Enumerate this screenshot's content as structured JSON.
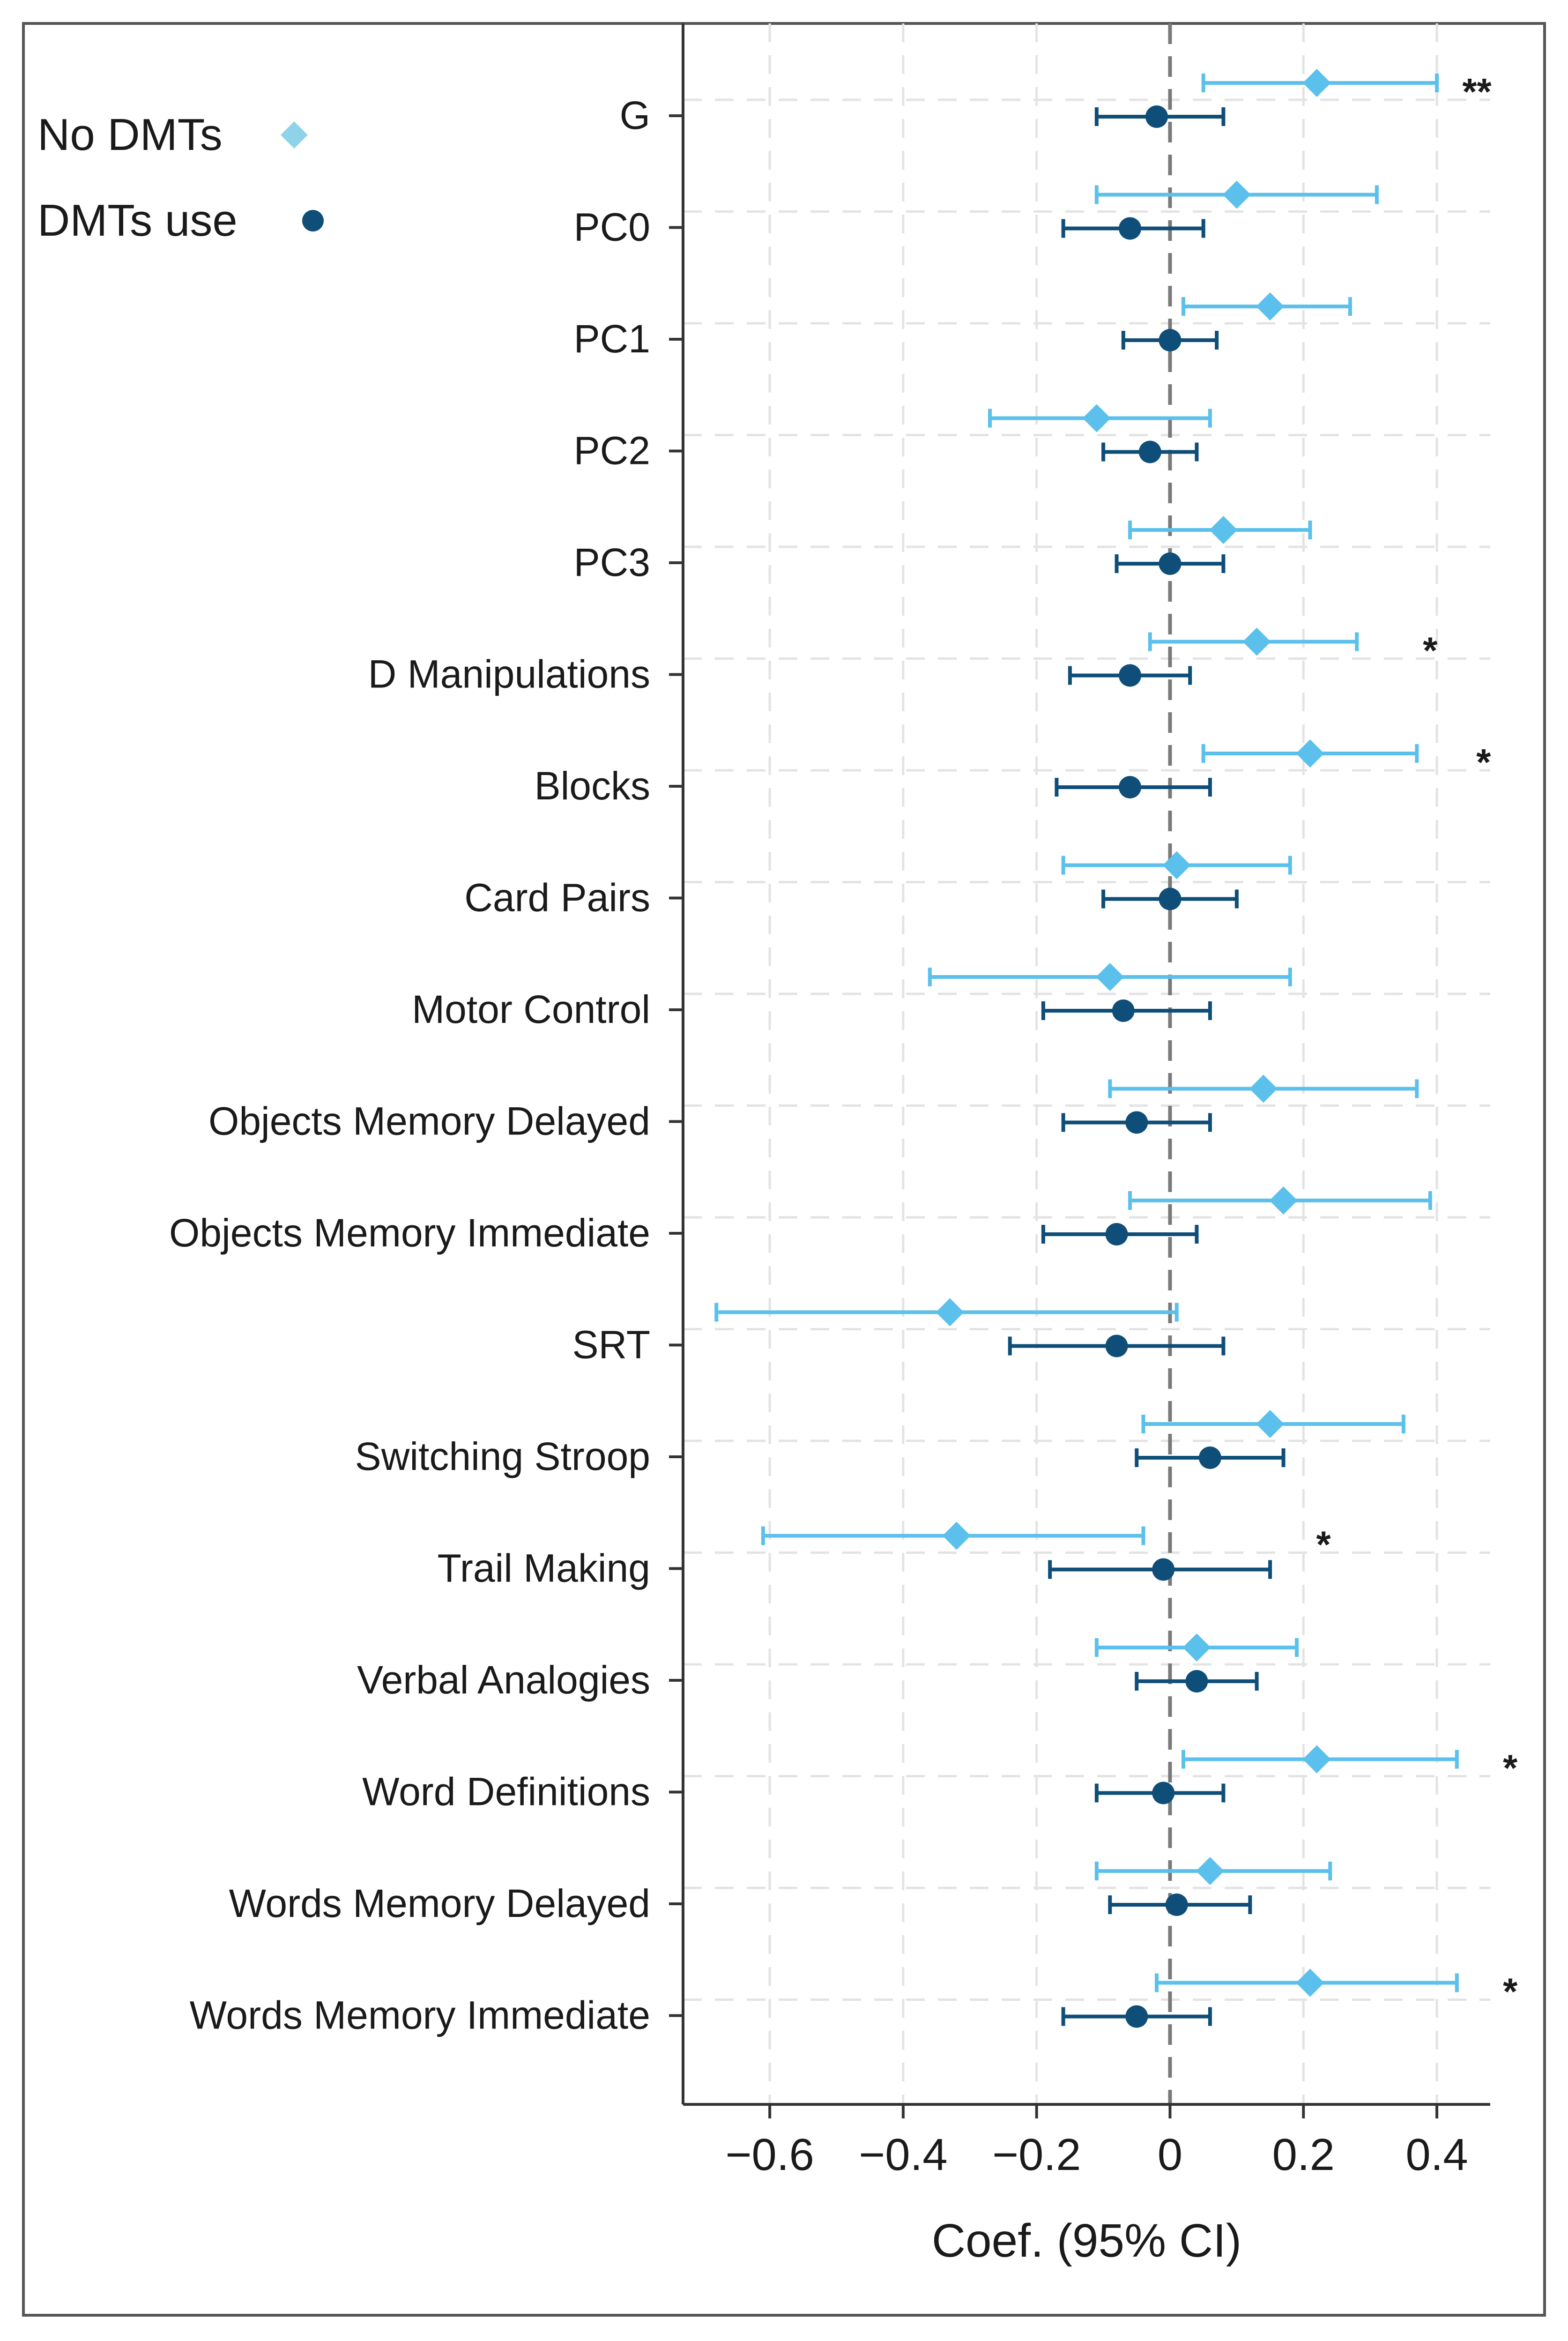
{
  "chart_data": {
    "type": "forest",
    "xlabel": "Coef. (95% CI)",
    "xlim": [
      -0.73,
      0.48
    ],
    "xticks": [
      -0.6,
      -0.4,
      -0.2,
      0,
      0.2,
      0.4
    ],
    "xtick_labels": [
      "−0.6",
      "−0.4",
      "−0.2",
      "0",
      "0.2",
      "0.4"
    ],
    "reference_line": 0,
    "grid": true,
    "legend_position": "top-left",
    "categories": [
      "G",
      "PC0",
      "PC1",
      "PC2",
      "PC3",
      "D Manipulations",
      "Blocks",
      "Card Pairs",
      "Motor Control",
      "Objects Memory Delayed",
      "Objects Memory Immediate",
      "SRT",
      "Switching Stroop",
      "Trail Making",
      "Verbal Analogies",
      "Word Definitions",
      "Words Memory Delayed",
      "Words Memory Immediate"
    ],
    "series": [
      {
        "name": "No DMTs",
        "marker": "diamond",
        "color": "#5bc0eb",
        "legend_color": "#8fd3e8",
        "estimates": [
          0.22,
          0.1,
          0.15,
          -0.11,
          0.08,
          0.13,
          0.21,
          0.01,
          -0.09,
          0.14,
          0.17,
          -0.33,
          0.15,
          -0.32,
          0.04,
          0.22,
          0.06,
          0.21
        ],
        "lower": [
          0.05,
          -0.11,
          0.02,
          -0.27,
          -0.06,
          -0.03,
          0.05,
          -0.16,
          -0.36,
          -0.09,
          -0.06,
          -0.68,
          -0.04,
          -0.61,
          -0.11,
          0.02,
          -0.11,
          -0.02
        ],
        "upper": [
          0.4,
          0.31,
          0.27,
          0.06,
          0.21,
          0.28,
          0.37,
          0.18,
          0.18,
          0.37,
          0.39,
          0.01,
          0.35,
          -0.04,
          0.19,
          0.43,
          0.24,
          0.43
        ]
      },
      {
        "name": "DMTs use",
        "marker": "circle",
        "color": "#0e4e78",
        "legend_color": "#0e4e78",
        "estimates": [
          -0.02,
          -0.06,
          0.0,
          -0.03,
          0.0,
          -0.06,
          -0.06,
          0.0,
          -0.07,
          -0.05,
          -0.08,
          -0.08,
          0.06,
          -0.01,
          0.04,
          -0.01,
          0.01,
          -0.05
        ],
        "lower": [
          -0.11,
          -0.16,
          -0.07,
          -0.1,
          -0.08,
          -0.15,
          -0.17,
          -0.1,
          -0.19,
          -0.16,
          -0.19,
          -0.24,
          -0.05,
          -0.18,
          -0.05,
          -0.11,
          -0.09,
          -0.16
        ],
        "upper": [
          0.08,
          0.05,
          0.07,
          0.04,
          0.08,
          0.03,
          0.06,
          0.1,
          0.06,
          0.06,
          0.04,
          0.08,
          0.17,
          0.15,
          0.13,
          0.08,
          0.12,
          0.06
        ]
      }
    ],
    "significance": [
      {
        "category": "G",
        "text": "**",
        "x": 0.46
      },
      {
        "category": "D Manipulations",
        "text": "*",
        "x": 0.39
      },
      {
        "category": "Blocks",
        "text": "*",
        "x": 0.47
      },
      {
        "category": "Trail Making",
        "text": "*",
        "x": 0.23
      },
      {
        "category": "Word Definitions",
        "text": "*",
        "x": 0.51
      },
      {
        "category": "Words Memory Immediate",
        "text": "*",
        "x": 0.51
      }
    ]
  }
}
